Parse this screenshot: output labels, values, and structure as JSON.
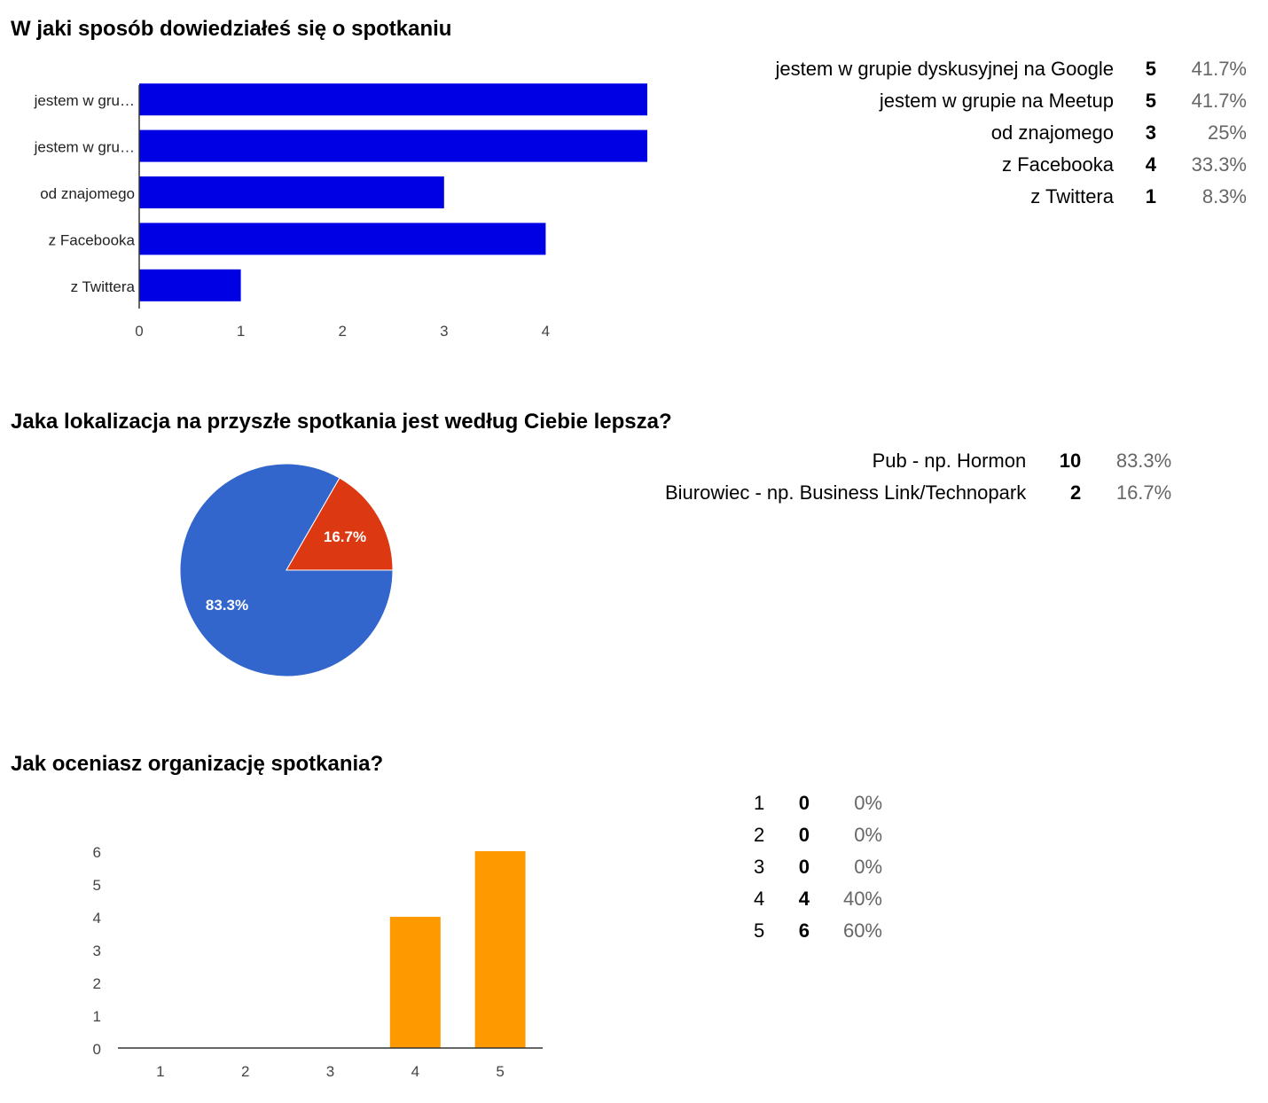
{
  "chart_data": [
    {
      "type": "bar",
      "orientation": "horizontal",
      "title": "W jaki sposób dowiedziałeś się o spotkaniu",
      "categories": [
        "jestem w gru…",
        "jestem w gru…",
        "od znajomego",
        "z Facebooka",
        "z Twittera"
      ],
      "values": [
        5,
        5,
        3,
        4,
        1
      ],
      "xlim": [
        0,
        5
      ],
      "x_ticks": [
        "0",
        "1",
        "2",
        "3",
        "4"
      ],
      "color": "#0000e5",
      "grid": false,
      "summary": [
        {
          "label": "jestem w grupie dyskusyjnej na Google",
          "count": "5",
          "percent": "41.7%"
        },
        {
          "label": "jestem w grupie na Meetup",
          "count": "5",
          "percent": "41.7%"
        },
        {
          "label": "od znajomego",
          "count": "3",
          "percent": "25%"
        },
        {
          "label": "z Facebooka",
          "count": "4",
          "percent": "33.3%"
        },
        {
          "label": "z Twittera",
          "count": "1",
          "percent": "8.3%"
        }
      ]
    },
    {
      "type": "pie",
      "title": "Jaka lokalizacja na przyszłe spotkania jest według Ciebie lepsza?",
      "slices": [
        {
          "label": "Pub - np. Hormon",
          "value": 10,
          "percent_label": "83.3%",
          "color": "#3366cc"
        },
        {
          "label": "Biurowiec - np. Business Link/Technopark",
          "value": 2,
          "percent_label": "16.7%",
          "color": "#dc3912"
        }
      ],
      "summary": [
        {
          "label": "Pub - np. Hormon",
          "count": "10",
          "percent": "83.3%"
        },
        {
          "label": "Biurowiec - np. Business Link/Technopark",
          "count": "2",
          "percent": "16.7%"
        }
      ]
    },
    {
      "type": "bar",
      "orientation": "vertical",
      "title": "Jak oceniasz organizację spotkania?",
      "categories": [
        "1",
        "2",
        "3",
        "4",
        "5"
      ],
      "values": [
        0,
        0,
        0,
        4,
        6
      ],
      "ylim": [
        0,
        6
      ],
      "y_ticks": [
        "0",
        "1",
        "2",
        "3",
        "4",
        "5",
        "6"
      ],
      "color": "#ff9900",
      "grid": false,
      "summary": [
        {
          "label": "1",
          "count": "0",
          "percent": "0%"
        },
        {
          "label": "2",
          "count": "0",
          "percent": "0%"
        },
        {
          "label": "3",
          "count": "0",
          "percent": "0%"
        },
        {
          "label": "4",
          "count": "4",
          "percent": "40%"
        },
        {
          "label": "5",
          "count": "6",
          "percent": "60%"
        }
      ]
    }
  ]
}
